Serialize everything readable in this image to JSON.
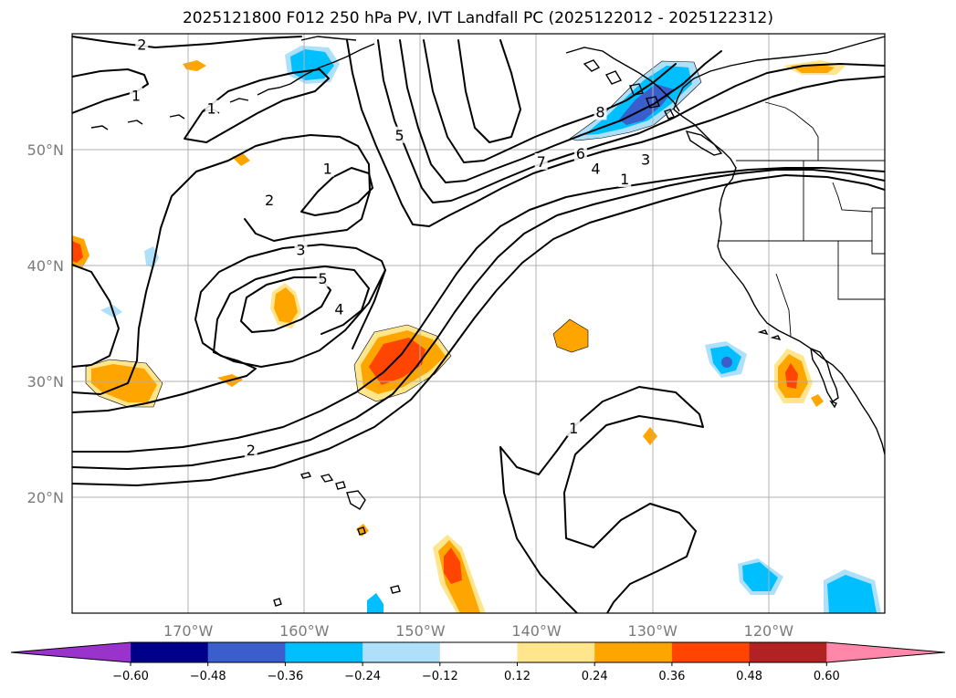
{
  "title": "2025121800 F012 250 hPa PV, IVT Landfall PC (2025122012 - 2025122312)",
  "map": {
    "lon_range": [
      -180,
      -110
    ],
    "lat_range": [
      10,
      60
    ],
    "lon_ticks": [
      {
        "value": -170,
        "label": "170°W"
      },
      {
        "value": -160,
        "label": "160°W"
      },
      {
        "value": -150,
        "label": "150°W"
      },
      {
        "value": -140,
        "label": "140°W"
      },
      {
        "value": -130,
        "label": "130°W"
      },
      {
        "value": -120,
        "label": "120°W"
      }
    ],
    "lat_ticks": [
      {
        "value": 20,
        "label": "20°N"
      },
      {
        "value": 30,
        "label": "30°N"
      },
      {
        "value": 40,
        "label": "40°N"
      },
      {
        "value": 50,
        "label": "50°N"
      }
    ],
    "grid": true,
    "contour_field": "250 hPa PV",
    "contour_labels": [
      {
        "text": "2",
        "lon": -174,
        "lat": 59
      },
      {
        "text": "1",
        "lon": -174.5,
        "lat": 54.6
      },
      {
        "text": "1",
        "lon": -168,
        "lat": 53.5
      },
      {
        "text": "5",
        "lon": -151.8,
        "lat": 51.2
      },
      {
        "text": "1",
        "lon": -158,
        "lat": 48.3
      },
      {
        "text": "2",
        "lon": -163,
        "lat": 45.6
      },
      {
        "text": "3",
        "lon": -160.3,
        "lat": 41.3
      },
      {
        "text": "5",
        "lon": -158.4,
        "lat": 38.8
      },
      {
        "text": "4",
        "lon": -157,
        "lat": 36.2
      },
      {
        "text": "8",
        "lon": -134.5,
        "lat": 53.2
      },
      {
        "text": "7",
        "lon": -139.6,
        "lat": 48.9
      },
      {
        "text": "6",
        "lon": -136.2,
        "lat": 49.6
      },
      {
        "text": "4",
        "lon": -134.9,
        "lat": 48.3
      },
      {
        "text": "3",
        "lon": -130.6,
        "lat": 49.1
      },
      {
        "text": "1",
        "lon": -132.4,
        "lat": 47.4
      },
      {
        "text": "2",
        "lon": -164.6,
        "lat": 24
      },
      {
        "text": "1",
        "lon": -136.8,
        "lat": 25.9
      }
    ]
  },
  "colorbar": {
    "field": "IVT Landfall PC",
    "levels": [
      -0.6,
      -0.48,
      -0.36,
      -0.24,
      -0.12,
      0.12,
      0.24,
      0.36,
      0.48,
      0.6
    ],
    "tick_labels": [
      "−0.60",
      "−0.48",
      "−0.36",
      "−0.24",
      "−0.12",
      "0.12",
      "0.24",
      "0.36",
      "0.48",
      "0.60"
    ],
    "colors": [
      "#9933cc",
      "#00008b",
      "#3a5fcd",
      "#00bfff",
      "#afe0fa",
      "#ffffff",
      "#ffe68c",
      "#ffa500",
      "#ff4500",
      "#b22222",
      "#ff88aa"
    ],
    "extend": "both"
  }
}
